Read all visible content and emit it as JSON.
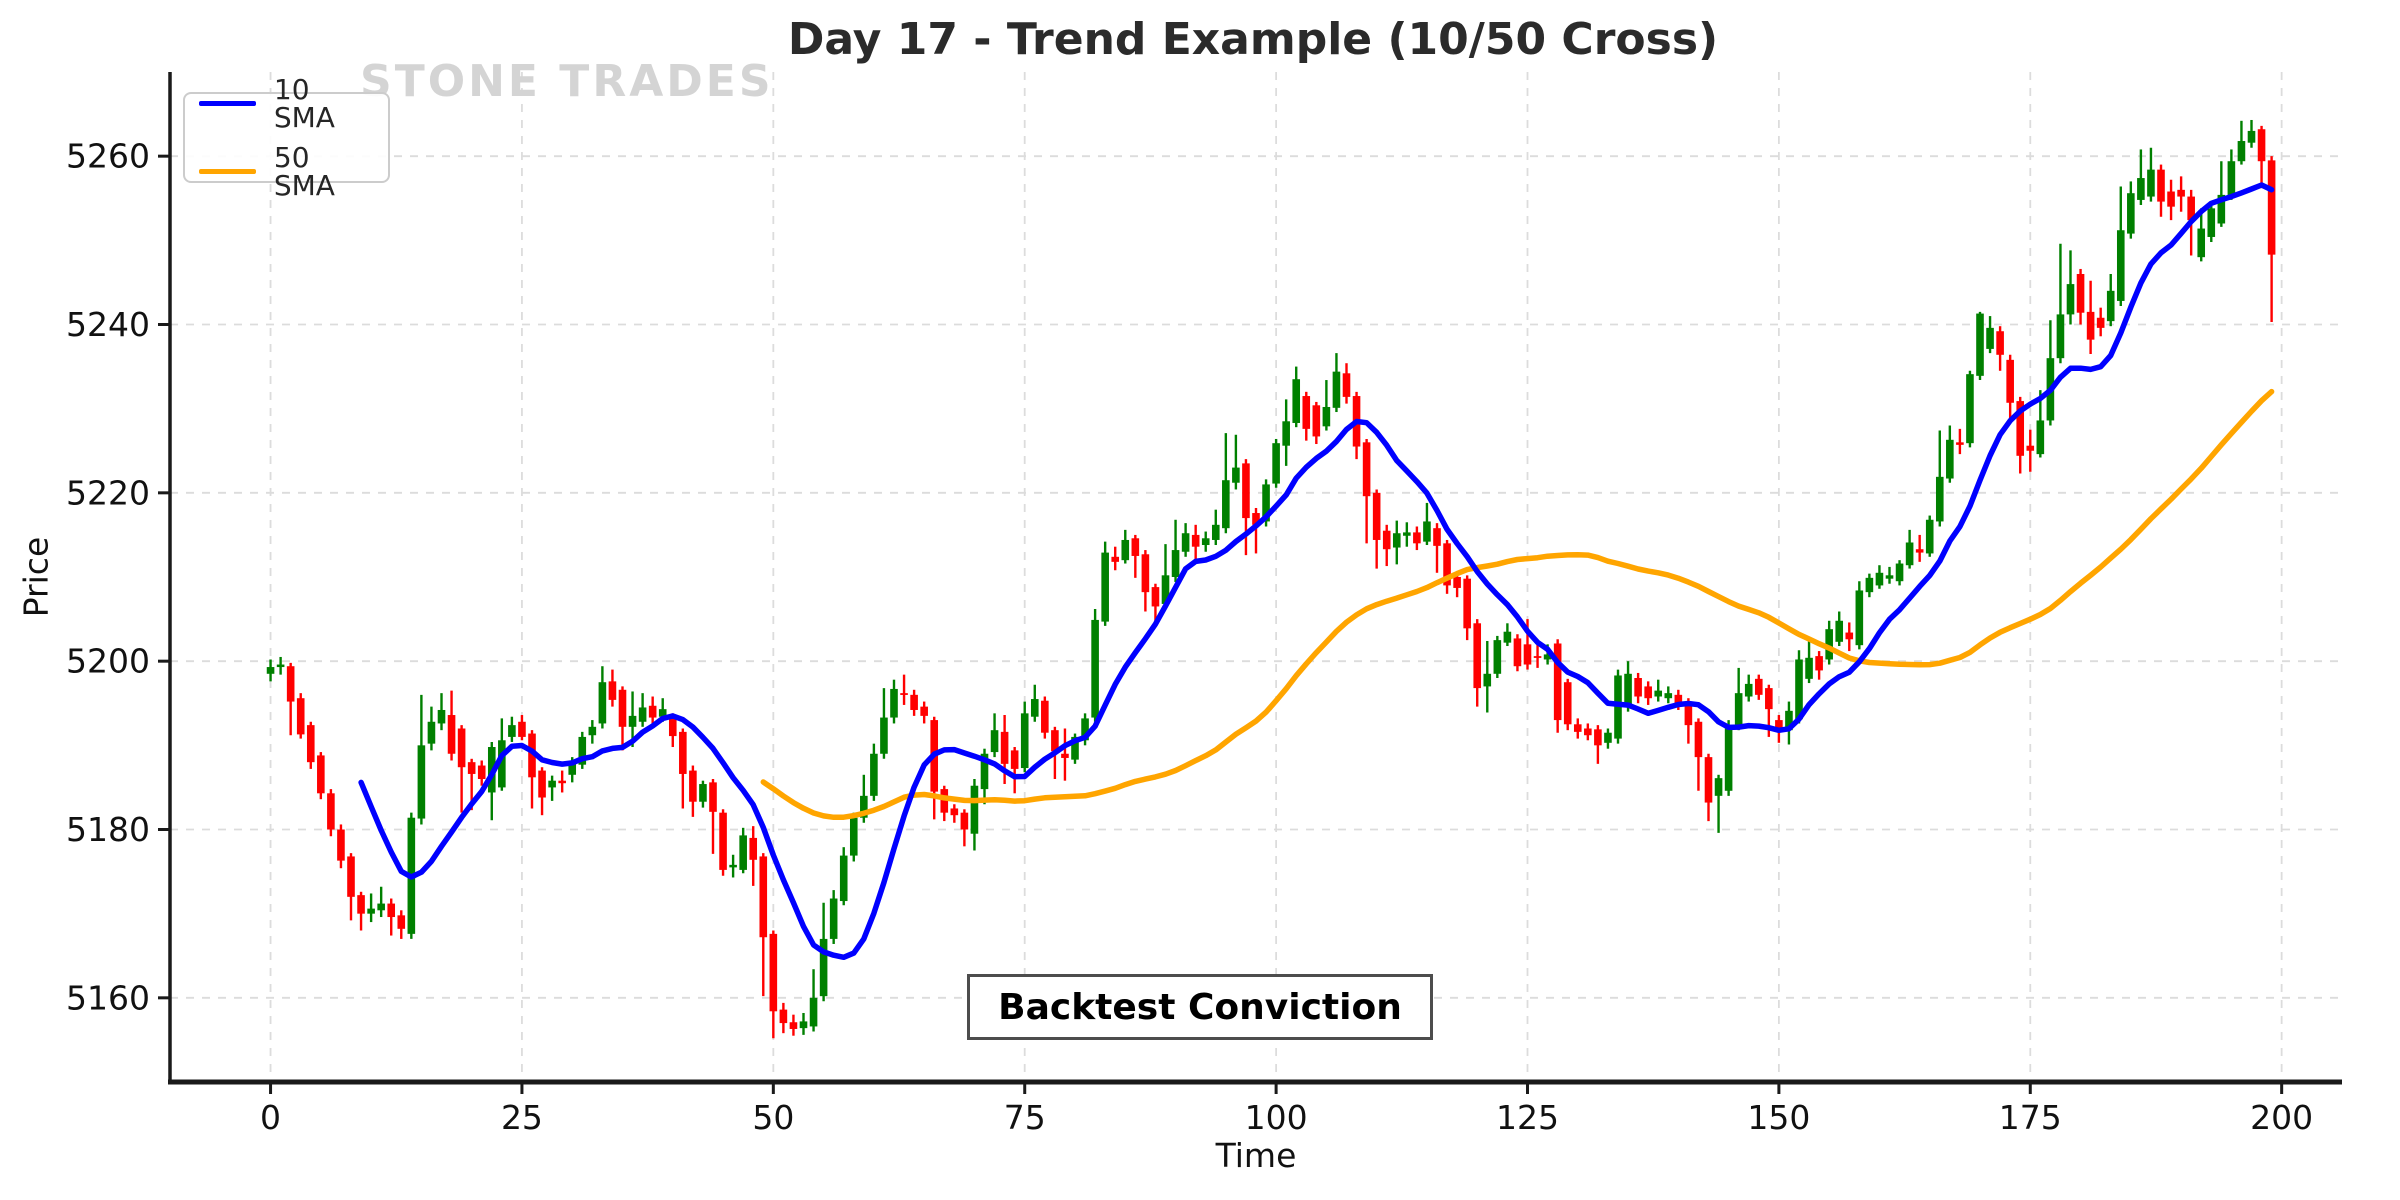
{
  "header": {
    "title": "Day 17 - Trend Example (10/50 Cross)",
    "watermark": "STONE TRADES"
  },
  "legend": {
    "items": [
      {
        "label": "10 SMA",
        "color": "#0000ff"
      },
      {
        "label": "50 SMA",
        "color": "#ffa500"
      }
    ],
    "position": "upper left"
  },
  "annotation": {
    "label": "Backtest Conviction"
  },
  "axes": {
    "xlabel": "Time",
    "ylabel": "Price"
  },
  "chart_data": {
    "type": "candlestick",
    "title": "Day 17 - Trend Example (10/50 Cross)",
    "xlabel": "Time",
    "ylabel": "Price",
    "xlim": [
      -10,
      206
    ],
    "ylim": [
      5150,
      5270
    ],
    "x_ticks": [
      0,
      25,
      50,
      75,
      100,
      125,
      150,
      175,
      200
    ],
    "y_ticks": [
      5160,
      5180,
      5200,
      5220,
      5240,
      5260
    ],
    "grid": true,
    "grid_color": "#dcdcdc",
    "up_color": "#008000",
    "down_color": "#ff0000",
    "spine_color": "#1a1a1a",
    "tick_label_color": "#111111",
    "series": [
      {
        "name": "10 SMA",
        "type": "sma",
        "window": 10,
        "color": "#0000ff"
      },
      {
        "name": "50 SMA",
        "type": "sma",
        "window": 50,
        "color": "#ffa500"
      }
    ],
    "candles_format": [
      "open",
      "high",
      "low",
      "close"
    ],
    "candles": [
      [
        5198.5,
        5200.2,
        5197.6,
        5199.3
      ],
      [
        5199.3,
        5200.5,
        5198.4,
        5199.6
      ],
      [
        5199.4,
        5199.8,
        5191.2,
        5195.2
      ],
      [
        5195.6,
        5196.2,
        5190.8,
        5191.3
      ],
      [
        5192.4,
        5192.8,
        5187.2,
        5188.0
      ],
      [
        5188.8,
        5189.2,
        5183.6,
        5184.3
      ],
      [
        5184.3,
        5184.8,
        5179.2,
        5180.0
      ],
      [
        5180.0,
        5180.6,
        5175.4,
        5176.3
      ],
      [
        5176.8,
        5177.2,
        5169.2,
        5172.0
      ],
      [
        5172.2,
        5172.6,
        5168.0,
        5170.0
      ],
      [
        5170.0,
        5172.4,
        5169.0,
        5170.6
      ],
      [
        5170.4,
        5173.2,
        5169.6,
        5171.2
      ],
      [
        5171.2,
        5171.8,
        5167.4,
        5169.6
      ],
      [
        5169.8,
        5170.4,
        5167.0,
        5168.2
      ],
      [
        5167.6,
        5182.0,
        5167.0,
        5181.4
      ],
      [
        5181.3,
        5196.0,
        5180.6,
        5190.0
      ],
      [
        5190.2,
        5194.6,
        5189.4,
        5192.8
      ],
      [
        5192.6,
        5196.2,
        5191.8,
        5194.2
      ],
      [
        5193.6,
        5196.5,
        5188.2,
        5189.0
      ],
      [
        5192.0,
        5192.4,
        5182.0,
        5187.4
      ],
      [
        5188.0,
        5188.4,
        5182.3,
        5186.6
      ],
      [
        5187.6,
        5188.2,
        5185.2,
        5186.0
      ],
      [
        5184.4,
        5190.4,
        5181.1,
        5189.8
      ],
      [
        5185.0,
        5193.2,
        5184.6,
        5190.6
      ],
      [
        5191.0,
        5193.4,
        5190.4,
        5192.4
      ],
      [
        5192.8,
        5193.6,
        5190.6,
        5191.0
      ],
      [
        5191.4,
        5191.8,
        5182.5,
        5186.2
      ],
      [
        5187.0,
        5187.4,
        5181.7,
        5183.8
      ],
      [
        5185.0,
        5186.4,
        5183.4,
        5185.8
      ],
      [
        5185.8,
        5187.0,
        5184.4,
        5185.5
      ],
      [
        5186.5,
        5188.6,
        5185.6,
        5188.0
      ],
      [
        5187.7,
        5191.6,
        5187.2,
        5191.0
      ],
      [
        5191.2,
        5193.0,
        5190.2,
        5192.2
      ],
      [
        5192.6,
        5199.4,
        5192.0,
        5197.5
      ],
      [
        5197.6,
        5199.0,
        5194.6,
        5195.4
      ],
      [
        5196.6,
        5197.0,
        5189.4,
        5192.2
      ],
      [
        5192.2,
        5196.4,
        5189.8,
        5193.5
      ],
      [
        5192.8,
        5196.2,
        5192.2,
        5194.5
      ],
      [
        5194.7,
        5195.8,
        5192.6,
        5193.3
      ],
      [
        5193.4,
        5195.6,
        5192.8,
        5194.3
      ],
      [
        5193.3,
        5193.8,
        5189.8,
        5191.1
      ],
      [
        5191.6,
        5192.0,
        5182.5,
        5186.6
      ],
      [
        5187.0,
        5187.6,
        5181.5,
        5183.3
      ],
      [
        5183.3,
        5185.8,
        5182.6,
        5185.4
      ],
      [
        5185.6,
        5186.0,
        5177.1,
        5182.1
      ],
      [
        5182.0,
        5182.4,
        5174.5,
        5175.2
      ],
      [
        5175.5,
        5177.0,
        5174.3,
        5175.8
      ],
      [
        5175.2,
        5180.2,
        5174.8,
        5179.3
      ],
      [
        5179.0,
        5180.4,
        5173.3,
        5176.4
      ],
      [
        5176.8,
        5177.2,
        5160.2,
        5167.2
      ],
      [
        5167.6,
        5168.0,
        5155.2,
        5158.4
      ],
      [
        5158.6,
        5159.4,
        5155.8,
        5157.0
      ],
      [
        5157.1,
        5158.0,
        5155.5,
        5156.3
      ],
      [
        5156.4,
        5158.2,
        5155.6,
        5157.2
      ],
      [
        5156.6,
        5163.4,
        5156.0,
        5160.0
      ],
      [
        5160.2,
        5171.3,
        5159.6,
        5167.0
      ],
      [
        5167.0,
        5172.8,
        5166.4,
        5171.8
      ],
      [
        5171.5,
        5177.9,
        5171.0,
        5176.9
      ],
      [
        5176.9,
        5182.0,
        5176.2,
        5181.4
      ],
      [
        5181.4,
        5186.5,
        5180.8,
        5184.0
      ],
      [
        5184.0,
        5190.2,
        5183.4,
        5189.0
      ],
      [
        5189.0,
        5196.8,
        5188.4,
        5193.3
      ],
      [
        5193.3,
        5197.8,
        5192.6,
        5196.7
      ],
      [
        5196.2,
        5198.4,
        5194.8,
        5196.0
      ],
      [
        5196.0,
        5196.6,
        5193.5,
        5194.2
      ],
      [
        5194.6,
        5195.2,
        5192.6,
        5193.5
      ],
      [
        5193.0,
        5193.4,
        5181.2,
        5184.5
      ],
      [
        5184.8,
        5185.2,
        5181.0,
        5182.0
      ],
      [
        5182.5,
        5183.0,
        5180.8,
        5181.7
      ],
      [
        5182.0,
        5182.4,
        5178.0,
        5180.0
      ],
      [
        5179.5,
        5186.0,
        5177.5,
        5185.2
      ],
      [
        5184.8,
        5189.6,
        5183.0,
        5189.0
      ],
      [
        5189.2,
        5193.8,
        5188.6,
        5191.8
      ],
      [
        5191.6,
        5193.6,
        5185.4,
        5187.8
      ],
      [
        5189.4,
        5189.8,
        5184.3,
        5187.2
      ],
      [
        5187.3,
        5195.2,
        5186.8,
        5193.8
      ],
      [
        5193.4,
        5197.2,
        5192.8,
        5195.5
      ],
      [
        5195.3,
        5195.8,
        5190.8,
        5191.5
      ],
      [
        5191.8,
        5192.2,
        5186.0,
        5189.3
      ],
      [
        5189.0,
        5192.0,
        5185.8,
        5188.5
      ],
      [
        5188.3,
        5191.4,
        5187.8,
        5191.0
      ],
      [
        5190.6,
        5193.8,
        5190.0,
        5193.2
      ],
      [
        5193.3,
        5206.2,
        5192.8,
        5204.9
      ],
      [
        5204.7,
        5214.2,
        5204.2,
        5212.9
      ],
      [
        5212.4,
        5213.6,
        5210.8,
        5211.8
      ],
      [
        5212.0,
        5215.6,
        5211.6,
        5214.4
      ],
      [
        5214.6,
        5215.0,
        5209.9,
        5212.5
      ],
      [
        5212.7,
        5213.2,
        5205.9,
        5208.2
      ],
      [
        5208.8,
        5209.2,
        5204.2,
        5206.5
      ],
      [
        5206.8,
        5213.9,
        5206.2,
        5210.2
      ],
      [
        5210.0,
        5216.8,
        5209.4,
        5213.2
      ],
      [
        5213.0,
        5216.4,
        5212.4,
        5215.2
      ],
      [
        5215.0,
        5216.2,
        5212.0,
        5213.6
      ],
      [
        5213.8,
        5215.4,
        5213.0,
        5214.6
      ],
      [
        5214.4,
        5218.0,
        5213.8,
        5216.2
      ],
      [
        5215.8,
        5227.1,
        5215.2,
        5221.5
      ],
      [
        5221.2,
        5226.9,
        5220.4,
        5223.0
      ],
      [
        5223.5,
        5224.0,
        5212.6,
        5217.0
      ],
      [
        5217.6,
        5218.2,
        5212.8,
        5216.2
      ],
      [
        5216.6,
        5221.6,
        5216.0,
        5221.0
      ],
      [
        5221.1,
        5226.4,
        5220.6,
        5225.9
      ],
      [
        5225.6,
        5231.1,
        5223.2,
        5228.5
      ],
      [
        5228.3,
        5235.0,
        5227.8,
        5233.5
      ],
      [
        5231.5,
        5232.0,
        5226.2,
        5227.6
      ],
      [
        5230.4,
        5230.8,
        5225.8,
        5226.7
      ],
      [
        5227.9,
        5233.4,
        5227.4,
        5230.2
      ],
      [
        5230.1,
        5236.6,
        5229.6,
        5234.4
      ],
      [
        5234.2,
        5235.4,
        5230.6,
        5231.4
      ],
      [
        5231.5,
        5232.0,
        5224.0,
        5225.5
      ],
      [
        5226.0,
        5226.4,
        5214.0,
        5219.6
      ],
      [
        5220.0,
        5220.4,
        5211.0,
        5214.4
      ],
      [
        5215.5,
        5216.2,
        5211.3,
        5213.3
      ],
      [
        5213.5,
        5216.7,
        5211.5,
        5215.2
      ],
      [
        5214.9,
        5216.5,
        5213.6,
        5215.3
      ],
      [
        5215.3,
        5216.0,
        5213.2,
        5214.0
      ],
      [
        5214.2,
        5218.8,
        5213.8,
        5216.6
      ],
      [
        5215.8,
        5216.4,
        5210.5,
        5213.7
      ],
      [
        5214.0,
        5214.4,
        5208.0,
        5209.0
      ],
      [
        5210.0,
        5210.6,
        5207.6,
        5208.7
      ],
      [
        5209.8,
        5210.2,
        5202.5,
        5203.9
      ],
      [
        5204.5,
        5205.0,
        5194.6,
        5196.8
      ],
      [
        5197.0,
        5202.4,
        5193.9,
        5198.5
      ],
      [
        5198.5,
        5203.0,
        5198.0,
        5202.5
      ],
      [
        5202.2,
        5204.5,
        5201.8,
        5203.5
      ],
      [
        5202.7,
        5203.2,
        5198.8,
        5199.4
      ],
      [
        5202.0,
        5205.0,
        5199.0,
        5199.6
      ],
      [
        5200.6,
        5202.2,
        5199.2,
        5200.4
      ],
      [
        5200.2,
        5202.0,
        5199.6,
        5200.8
      ],
      [
        5202.1,
        5202.6,
        5191.5,
        5193.0
      ],
      [
        5197.5,
        5197.9,
        5191.8,
        5192.5
      ],
      [
        5192.5,
        5193.2,
        5190.8,
        5191.6
      ],
      [
        5192.0,
        5192.6,
        5190.6,
        5191.2
      ],
      [
        5191.9,
        5192.4,
        5187.8,
        5190.0
      ],
      [
        5190.3,
        5192.0,
        5189.6,
        5191.5
      ],
      [
        5190.8,
        5199.0,
        5190.2,
        5198.3
      ],
      [
        5194.6,
        5200.0,
        5194.0,
        5198.5
      ],
      [
        5198.0,
        5198.6,
        5195.0,
        5195.8
      ],
      [
        5197.0,
        5197.6,
        5194.8,
        5195.6
      ],
      [
        5195.8,
        5197.8,
        5195.2,
        5196.5
      ],
      [
        5195.6,
        5197.0,
        5195.0,
        5196.2
      ],
      [
        5196.0,
        5196.6,
        5194.2,
        5194.9
      ],
      [
        5195.2,
        5195.6,
        5190.2,
        5192.4
      ],
      [
        5192.8,
        5193.2,
        5184.6,
        5188.6
      ],
      [
        5188.6,
        5189.0,
        5181.0,
        5183.2
      ],
      [
        5184.0,
        5186.5,
        5179.6,
        5186.1
      ],
      [
        5184.6,
        5193.0,
        5184.0,
        5192.0
      ],
      [
        5192.2,
        5199.2,
        5191.8,
        5196.2
      ],
      [
        5195.8,
        5198.4,
        5195.2,
        5197.3
      ],
      [
        5197.9,
        5198.4,
        5195.4,
        5196.0
      ],
      [
        5196.8,
        5197.2,
        5191.0,
        5194.3
      ],
      [
        5193.0,
        5193.6,
        5190.3,
        5191.8
      ],
      [
        5191.8,
        5195.2,
        5190.1,
        5194.1
      ],
      [
        5193.1,
        5201.3,
        5192.6,
        5200.2
      ],
      [
        5197.9,
        5202.7,
        5197.4,
        5200.4
      ],
      [
        5200.6,
        5201.2,
        5197.8,
        5198.9
      ],
      [
        5200.2,
        5204.8,
        5199.6,
        5203.8
      ],
      [
        5202.3,
        5205.9,
        5201.8,
        5204.8
      ],
      [
        5203.4,
        5204.6,
        5201.2,
        5202.6
      ],
      [
        5201.9,
        5209.5,
        5201.4,
        5208.4
      ],
      [
        5208.2,
        5210.4,
        5207.6,
        5209.9
      ],
      [
        5209.0,
        5211.4,
        5208.6,
        5210.5
      ],
      [
        5209.8,
        5211.2,
        5209.2,
        5210.2
      ],
      [
        5209.5,
        5212.0,
        5209.0,
        5211.6
      ],
      [
        5211.4,
        5215.6,
        5211.0,
        5214.1
      ],
      [
        5213.3,
        5215.0,
        5211.8,
        5212.9
      ],
      [
        5212.8,
        5217.3,
        5212.4,
        5216.8
      ],
      [
        5216.6,
        5227.4,
        5216.0,
        5221.9
      ],
      [
        5221.7,
        5228.0,
        5221.2,
        5226.3
      ],
      [
        5226.0,
        5227.6,
        5224.6,
        5225.7
      ],
      [
        5225.9,
        5234.5,
        5225.4,
        5234.1
      ],
      [
        5233.9,
        5241.5,
        5233.4,
        5241.3
      ],
      [
        5237.1,
        5241.0,
        5236.6,
        5239.6
      ],
      [
        5239.2,
        5239.8,
        5234.5,
        5236.4
      ],
      [
        5235.8,
        5236.4,
        5228.8,
        5230.7
      ],
      [
        5230.9,
        5231.4,
        5222.3,
        5224.4
      ],
      [
        5225.6,
        5227.5,
        5222.5,
        5225.0
      ],
      [
        5224.6,
        5232.2,
        5224.2,
        5228.6
      ],
      [
        5228.6,
        5240.5,
        5228.0,
        5236.0
      ],
      [
        5236.0,
        5249.6,
        5235.4,
        5241.2
      ],
      [
        5241.2,
        5248.8,
        5240.0,
        5244.8
      ],
      [
        5246.0,
        5246.6,
        5240.0,
        5241.4
      ],
      [
        5241.5,
        5245.2,
        5236.5,
        5238.2
      ],
      [
        5240.8,
        5242.0,
        5238.6,
        5239.6
      ],
      [
        5240.4,
        5246.0,
        5239.8,
        5244.0
      ],
      [
        5242.8,
        5256.4,
        5242.2,
        5251.2
      ],
      [
        5250.8,
        5257.0,
        5250.2,
        5255.6
      ],
      [
        5254.8,
        5260.8,
        5254.2,
        5257.4
      ],
      [
        5255.2,
        5261.0,
        5254.6,
        5258.4
      ],
      [
        5258.4,
        5259.0,
        5252.8,
        5254.6
      ],
      [
        5255.8,
        5257.2,
        5252.4,
        5254.0
      ],
      [
        5256.0,
        5257.6,
        5253.4,
        5255.2
      ],
      [
        5255.2,
        5256.0,
        5248.2,
        5252.4
      ],
      [
        5248.0,
        5253.8,
        5247.5,
        5251.4
      ],
      [
        5250.4,
        5254.6,
        5249.8,
        5253.8
      ],
      [
        5252.0,
        5259.4,
        5251.6,
        5255.4
      ],
      [
        5255.2,
        5260.8,
        5254.8,
        5259.4
      ],
      [
        5259.4,
        5264.2,
        5259.0,
        5261.8
      ],
      [
        5261.6,
        5264.3,
        5261.0,
        5263.0
      ],
      [
        5263.2,
        5263.6,
        5256.2,
        5259.4
      ],
      [
        5259.5,
        5260.0,
        5240.3,
        5248.3
      ]
    ]
  }
}
